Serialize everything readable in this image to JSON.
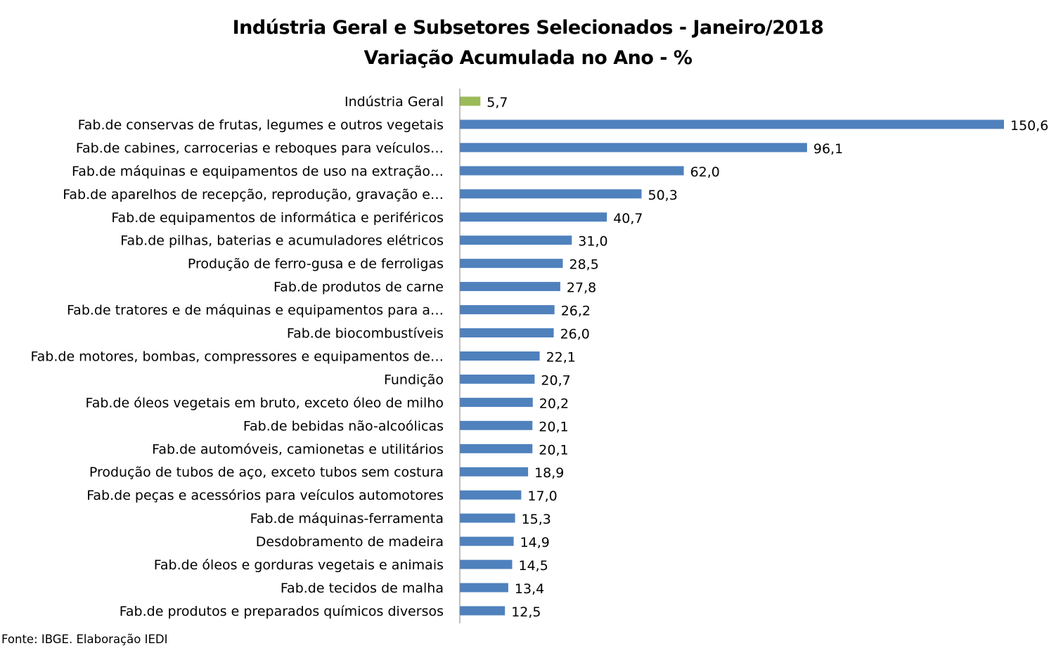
{
  "title_line1": "Indústria Geral e Subsetores Selecionados - Janeiro/2018",
  "title_line2": "Variação Acumulada no Ano - %",
  "source": "Fonte: IBGE. Elaboração IEDI",
  "colors": {
    "highlight": "#9BBB59",
    "bar": "#4F81BD",
    "axis": "#808080"
  },
  "chart_data": {
    "type": "bar",
    "orientation": "horizontal",
    "title": "Indústria Geral e Subsetores Selecionados - Janeiro/2018 / Variação Acumulada no Ano - %",
    "xlabel": "",
    "ylabel": "",
    "xlim": [
      0,
      150.6
    ],
    "grid": false,
    "legend": "none",
    "categories": [
      "Indústria Geral",
      "Fab.de conservas de frutas, legumes e outros vegetais",
      "Fab.de cabines, carrocerias e reboques para veículos…",
      "Fab.de máquinas e equipamentos de uso na extração…",
      "Fab.de aparelhos de recepção, reprodução, gravação e…",
      "Fab.de equipamentos de informática e periféricos",
      "Fab.de pilhas, baterias e acumuladores elétricos",
      "Produção de ferro-gusa e de ferroligas",
      "Fab.de produtos de carne",
      "Fab.de tratores e de máquinas e equipamentos para a…",
      "Fab.de biocombustíveis",
      "Fab.de motores, bombas, compressores e equipamentos de…",
      "Fundição",
      "Fab.de óleos vegetais em bruto, exceto óleo de milho",
      "Fab.de bebidas não-alcoólicas",
      "Fab.de automóveis, camionetas e utilitários",
      "Produção de tubos de aço, exceto tubos sem costura",
      "Fab.de peças e acessórios para veículos automotores",
      "Fab.de máquinas-ferramenta",
      "Desdobramento de madeira",
      "Fab.de óleos e gorduras vegetais e animais",
      "Fab.de tecidos de malha",
      "Fab.de produtos e preparados químicos diversos"
    ],
    "values": [
      5.7,
      150.6,
      96.1,
      62.0,
      50.3,
      40.7,
      31.0,
      28.5,
      27.8,
      26.2,
      26.0,
      22.1,
      20.7,
      20.2,
      20.1,
      20.1,
      18.9,
      17.0,
      15.3,
      14.9,
      14.5,
      13.4,
      12.5
    ],
    "value_labels": [
      "5,7",
      "150,6",
      "96,1",
      "62,0",
      "50,3",
      "40,7",
      "31,0",
      "28,5",
      "27,8",
      "26,2",
      "26,0",
      "22,1",
      "20,7",
      "20,2",
      "20,1",
      "20,1",
      "18,9",
      "17,0",
      "15,3",
      "14,9",
      "14,5",
      "13,4",
      "12,5"
    ],
    "highlight_categories": [
      "Indústria Geral"
    ]
  }
}
